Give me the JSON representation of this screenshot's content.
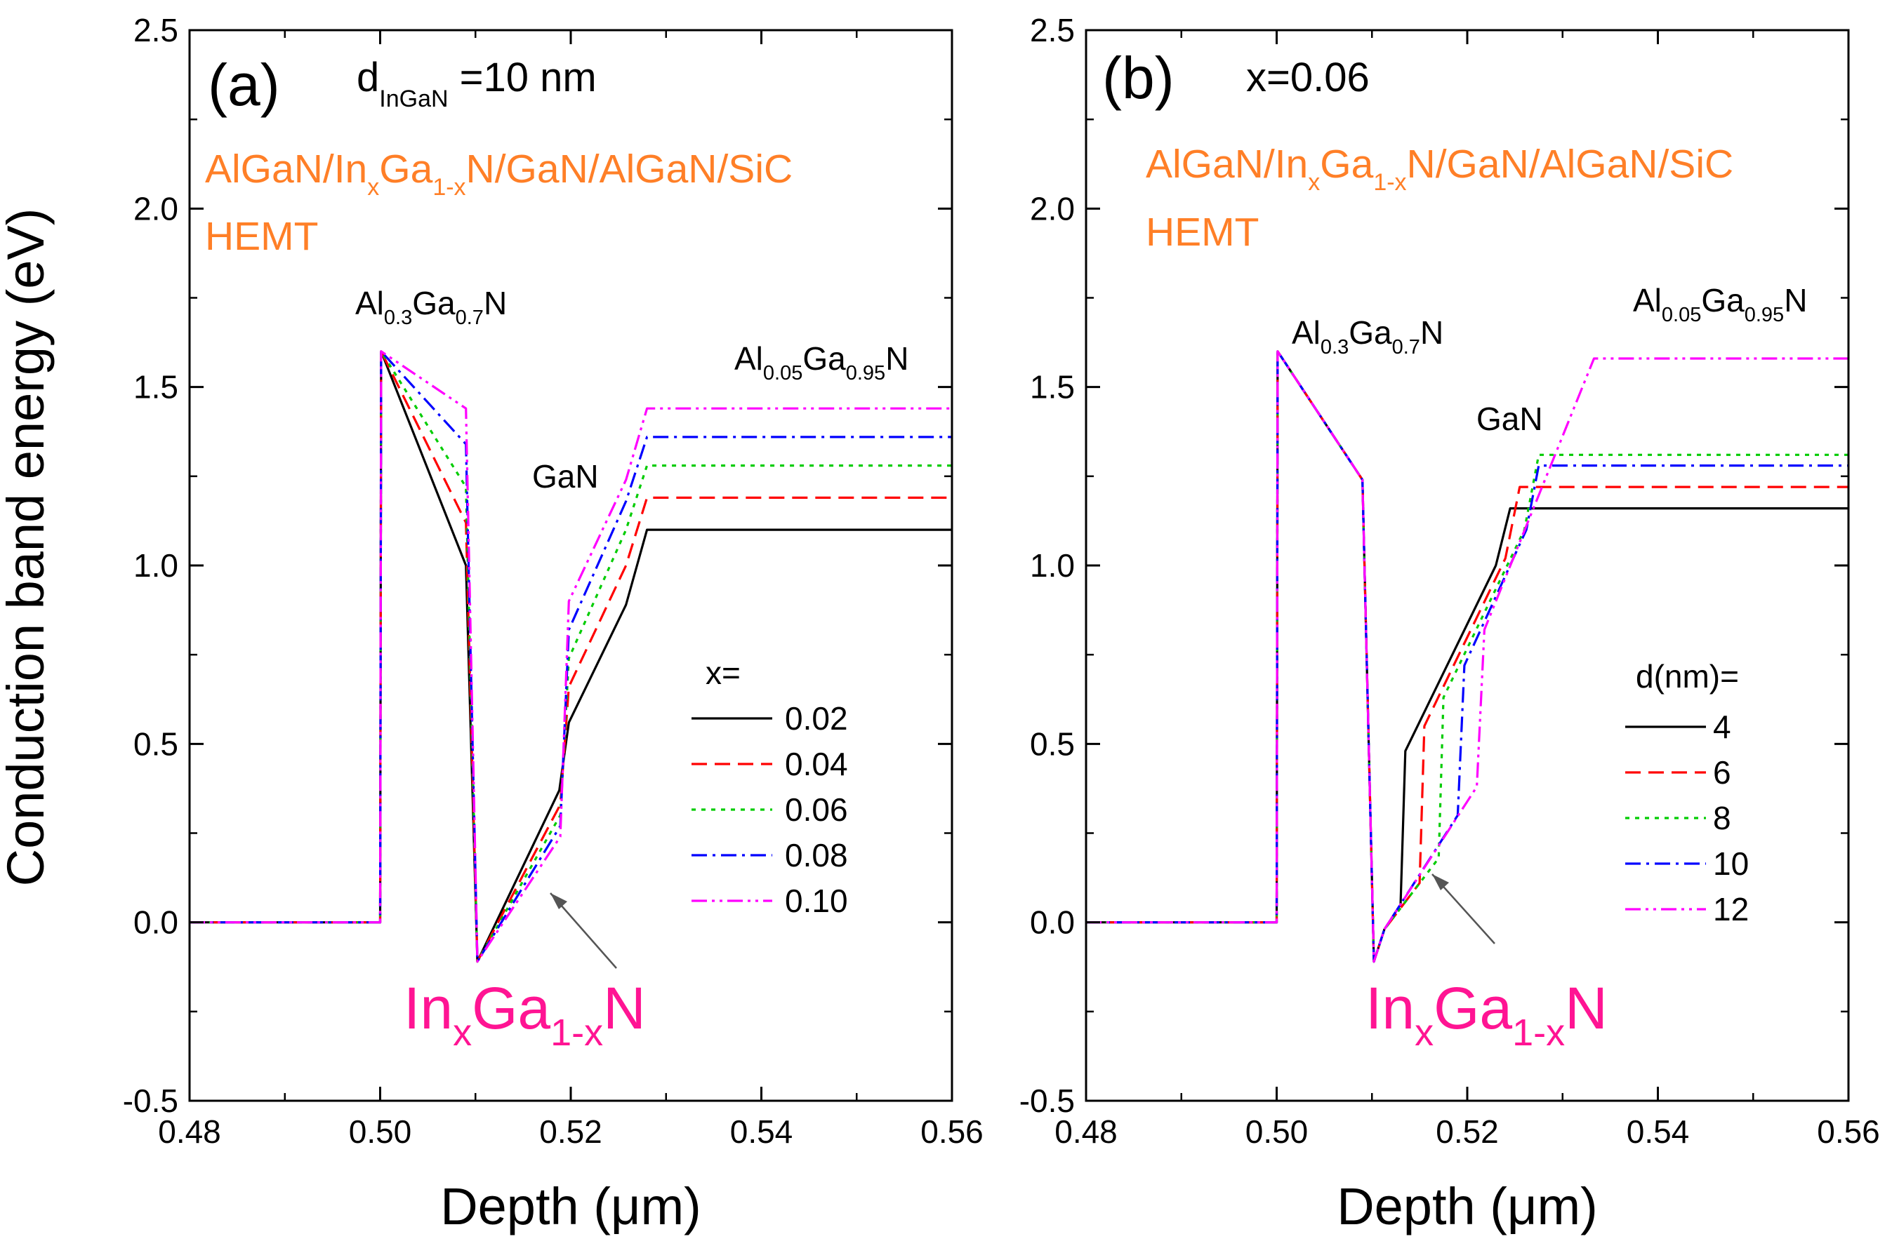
{
  "colors": {
    "x002": "#000000",
    "x004": "#ff0000",
    "x006": "#00cc00",
    "x008": "#0000ff",
    "x010": "#ff00ff",
    "structure_text": "#ff7f27",
    "ingan_label": "#ff1493",
    "axis": "#000000",
    "arrow": "#555555"
  },
  "y_axis_label": "Conduction band energy (eV)",
  "chart_data": [
    {
      "type": "line",
      "panel_label": "(a)",
      "param_main": "d",
      "param_sub": "InGaN",
      "param_value": " =10 nm",
      "structure": {
        "t1": "AlGaN/In",
        "s1": "x",
        "t2": "Ga",
        "s2": "1-x",
        "t3": "N/GaN/AlGaN/SiC",
        "line2": "HEMT"
      },
      "barrier_label": {
        "a": "Al",
        "b": "0.3",
        "c": "Ga",
        "d": "0.7",
        "e": "N"
      },
      "buffer_label": {
        "a": "Al",
        "b": "0.05",
        "c": "Ga",
        "d": "0.95",
        "e": "N"
      },
      "gan_label": "GaN",
      "ingan_label": {
        "a": "In",
        "b": "x",
        "c": "Ga",
        "d": "1-x",
        "e": "N"
      },
      "xlabel": "Depth (μm)",
      "xlim": [
        0.48,
        0.56
      ],
      "ylim": [
        -0.5,
        2.5
      ],
      "xticks": [
        "0.48",
        "0.50",
        "0.52",
        "0.54",
        "0.56"
      ],
      "yticks": [
        "-0.5",
        "0.0",
        "0.5",
        "1.0",
        "1.5",
        "2.0",
        "2.5"
      ],
      "legend_title": "x=",
      "series": [
        {
          "name": "0.02",
          "color": "#000000",
          "dash": "solid",
          "points": [
            [
              0.48,
              0
            ],
            [
              0.5,
              0
            ],
            [
              0.5001,
              1.6
            ],
            [
              0.509,
              1.0
            ],
            [
              0.5102,
              -0.11
            ],
            [
              0.5188,
              0.37
            ],
            [
              0.5198,
              0.56
            ],
            [
              0.5258,
              0.89
            ],
            [
              0.528,
              1.1
            ],
            [
              0.56,
              1.1
            ]
          ]
        },
        {
          "name": "0.04",
          "color": "#ff0000",
          "dash": "dash",
          "points": [
            [
              0.48,
              0
            ],
            [
              0.5,
              0
            ],
            [
              0.5001,
              1.6
            ],
            [
              0.509,
              1.12
            ],
            [
              0.5102,
              -0.11
            ],
            [
              0.5189,
              0.33
            ],
            [
              0.5198,
              0.66
            ],
            [
              0.5258,
              1.0
            ],
            [
              0.528,
              1.19
            ],
            [
              0.56,
              1.19
            ]
          ]
        },
        {
          "name": "0.06",
          "color": "#00cc00",
          "dash": "dot",
          "points": [
            [
              0.48,
              0
            ],
            [
              0.5,
              0
            ],
            [
              0.5001,
              1.6
            ],
            [
              0.509,
              1.22
            ],
            [
              0.5102,
              -0.11
            ],
            [
              0.5189,
              0.3
            ],
            [
              0.5198,
              0.74
            ],
            [
              0.5258,
              1.1
            ],
            [
              0.528,
              1.28
            ],
            [
              0.56,
              1.28
            ]
          ]
        },
        {
          "name": "0.08",
          "color": "#0000ff",
          "dash": "dashdot",
          "points": [
            [
              0.48,
              0
            ],
            [
              0.5,
              0
            ],
            [
              0.5001,
              1.6
            ],
            [
              0.509,
              1.34
            ],
            [
              0.5102,
              -0.11
            ],
            [
              0.5189,
              0.27
            ],
            [
              0.5198,
              0.82
            ],
            [
              0.5258,
              1.18
            ],
            [
              0.528,
              1.36
            ],
            [
              0.56,
              1.36
            ]
          ]
        },
        {
          "name": "0.10",
          "color": "#ff00ff",
          "dash": "dashdotdot",
          "points": [
            [
              0.48,
              0
            ],
            [
              0.5,
              0
            ],
            [
              0.5001,
              1.6
            ],
            [
              0.509,
              1.44
            ],
            [
              0.5102,
              -0.11
            ],
            [
              0.5189,
              0.24
            ],
            [
              0.5198,
              0.9
            ],
            [
              0.5258,
              1.24
            ],
            [
              0.528,
              1.44
            ],
            [
              0.56,
              1.44
            ]
          ]
        }
      ]
    },
    {
      "type": "line",
      "panel_label": "(b)",
      "param_main": "x=0.06",
      "param_sub": "",
      "param_value": "",
      "structure": {
        "t1": "AlGaN/In",
        "s1": "x",
        "t2": "Ga",
        "s2": "1-x",
        "t3": "N/GaN/AlGaN/SiC",
        "line2": "HEMT"
      },
      "barrier_label": {
        "a": "Al",
        "b": "0.3",
        "c": "Ga",
        "d": "0.7",
        "e": "N"
      },
      "buffer_label": {
        "a": "Al",
        "b": "0.05",
        "c": "Ga",
        "d": "0.95",
        "e": "N"
      },
      "gan_label": "GaN",
      "ingan_label": {
        "a": "In",
        "b": "x",
        "c": "Ga",
        "d": "1-x",
        "e": "N"
      },
      "xlabel": "Depth (μm)",
      "xlim": [
        0.48,
        0.56
      ],
      "ylim": [
        -0.5,
        2.5
      ],
      "xticks": [
        "0.48",
        "0.50",
        "0.52",
        "0.54",
        "0.56"
      ],
      "yticks": [
        "-0.5",
        "0.0",
        "0.5",
        "1.0",
        "1.5",
        "2.0",
        "2.5"
      ],
      "legend_title": "d(nm)=",
      "series": [
        {
          "name": "4",
          "color": "#000000",
          "dash": "solid",
          "points": [
            [
              0.48,
              0
            ],
            [
              0.5,
              0
            ],
            [
              0.5001,
              1.6
            ],
            [
              0.509,
              1.24
            ],
            [
              0.5102,
              -0.11
            ],
            [
              0.5113,
              -0.02
            ],
            [
              0.513,
              0.05
            ],
            [
              0.5135,
              0.48
            ],
            [
              0.523,
              1.0
            ],
            [
              0.5245,
              1.16
            ],
            [
              0.56,
              1.16
            ]
          ]
        },
        {
          "name": "6",
          "color": "#ff0000",
          "dash": "dash",
          "points": [
            [
              0.48,
              0
            ],
            [
              0.5,
              0
            ],
            [
              0.5001,
              1.6
            ],
            [
              0.509,
              1.24
            ],
            [
              0.5102,
              -0.11
            ],
            [
              0.5113,
              -0.02
            ],
            [
              0.515,
              0.11
            ],
            [
              0.5155,
              0.55
            ],
            [
              0.524,
              1.02
            ],
            [
              0.5255,
              1.22
            ],
            [
              0.56,
              1.22
            ]
          ]
        },
        {
          "name": "8",
          "color": "#00cc00",
          "dash": "dot",
          "points": [
            [
              0.48,
              0
            ],
            [
              0.5,
              0
            ],
            [
              0.5001,
              1.6
            ],
            [
              0.509,
              1.24
            ],
            [
              0.5102,
              -0.11
            ],
            [
              0.5113,
              -0.02
            ],
            [
              0.517,
              0.18
            ],
            [
              0.5175,
              0.63
            ],
            [
              0.526,
              1.1
            ],
            [
              0.5275,
              1.31
            ],
            [
              0.56,
              1.31
            ]
          ]
        },
        {
          "name": "10",
          "color": "#0000ff",
          "dash": "dashdot",
          "points": [
            [
              0.48,
              0
            ],
            [
              0.5,
              0
            ],
            [
              0.5001,
              1.6
            ],
            [
              0.509,
              1.24
            ],
            [
              0.5102,
              -0.11
            ],
            [
              0.5113,
              -0.02
            ],
            [
              0.519,
              0.3
            ],
            [
              0.5197,
              0.72
            ],
            [
              0.5262,
              1.1
            ],
            [
              0.5275,
              1.28
            ],
            [
              0.56,
              1.28
            ]
          ]
        },
        {
          "name": "12",
          "color": "#ff00ff",
          "dash": "dashdotdot",
          "points": [
            [
              0.48,
              0
            ],
            [
              0.5,
              0
            ],
            [
              0.5001,
              1.6
            ],
            [
              0.509,
              1.24
            ],
            [
              0.5102,
              -0.11
            ],
            [
              0.5113,
              -0.02
            ],
            [
              0.521,
              0.38
            ],
            [
              0.5218,
              0.82
            ],
            [
              0.5333,
              1.58
            ],
            [
              0.56,
              1.58
            ]
          ]
        }
      ]
    }
  ]
}
